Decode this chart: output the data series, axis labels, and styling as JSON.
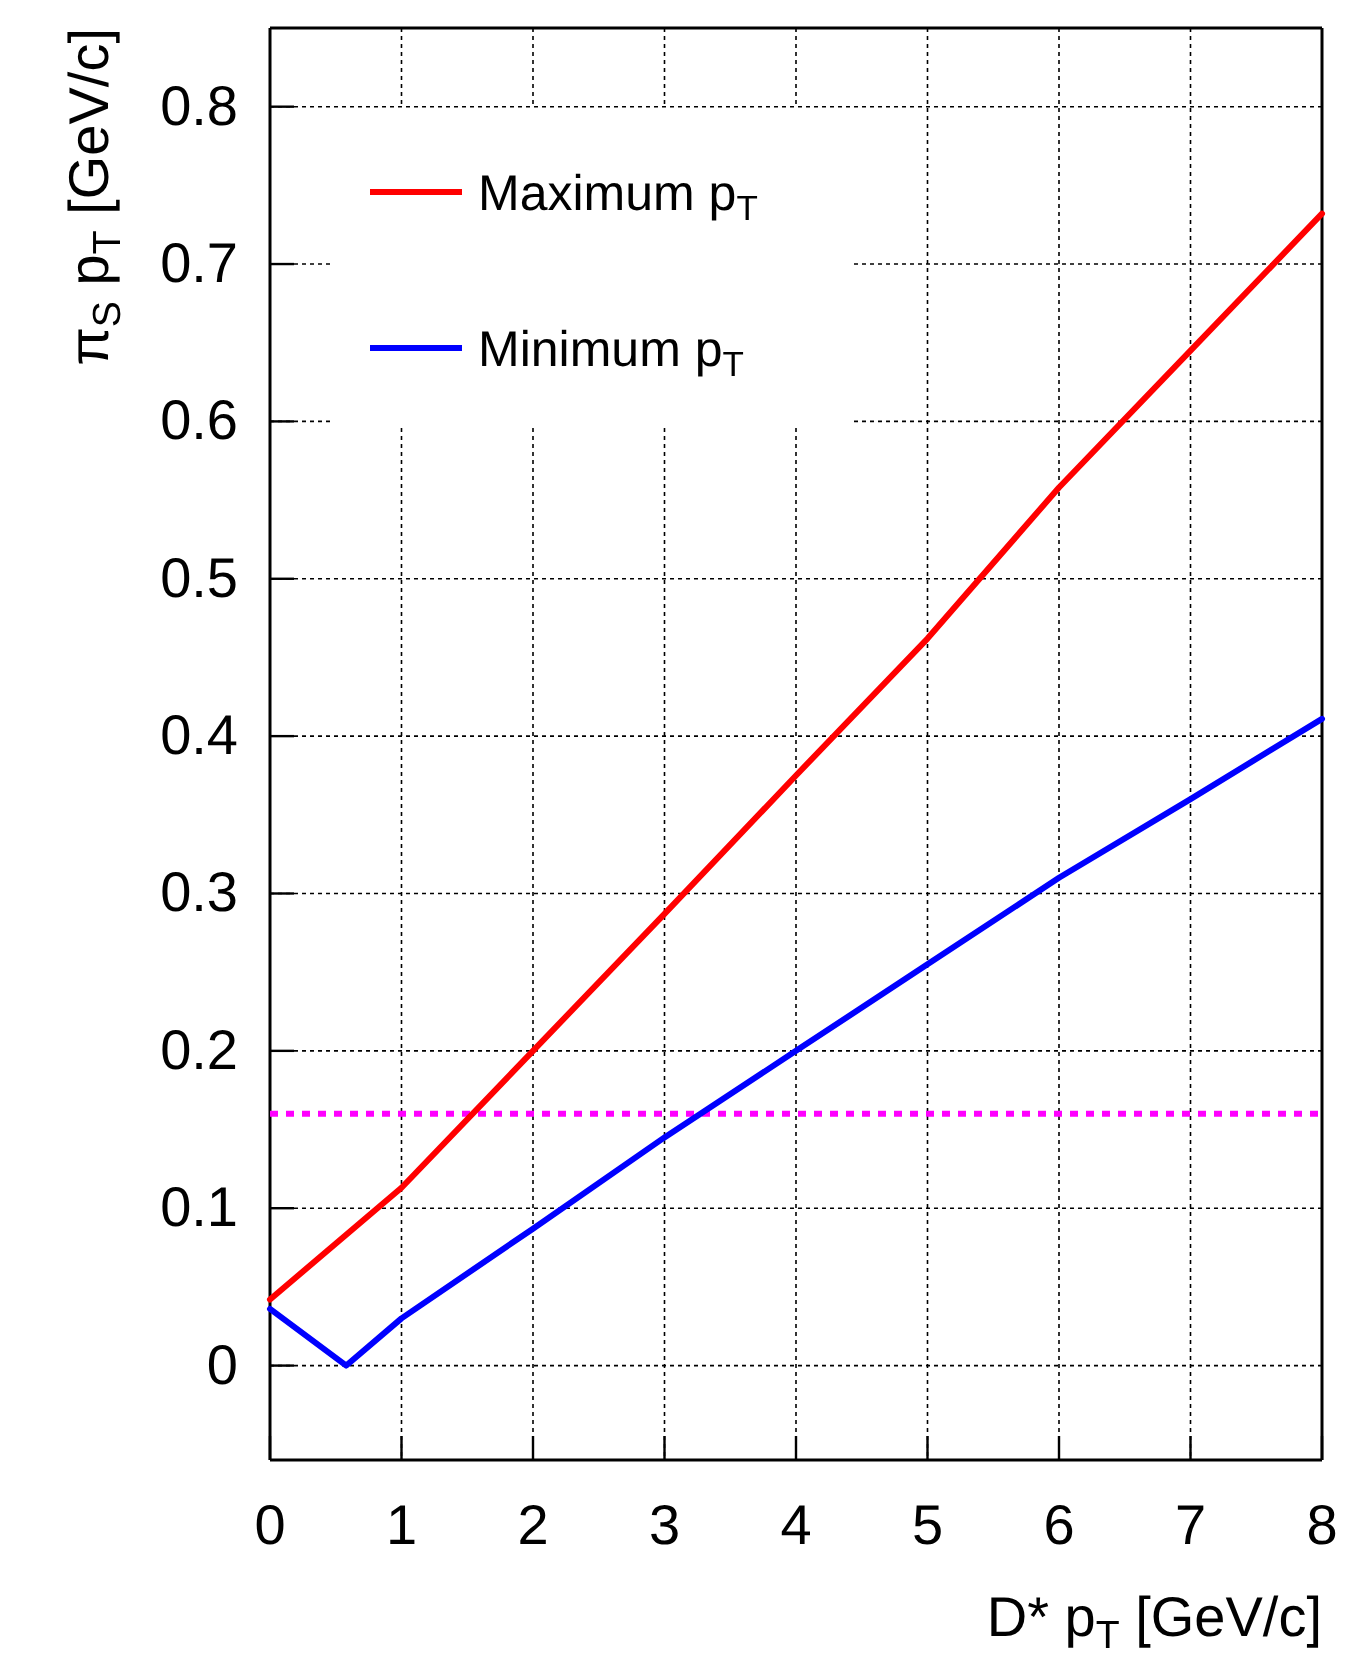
{
  "chart_data": {
    "type": "line",
    "xlabel": "D* p$_{T}$ [GeV/c]",
    "ylabel": "π$_{S}$ p$_{T}$ [GeV/c]",
    "xlim": [
      0,
      8
    ],
    "ylim": [
      -0.06,
      0.85
    ],
    "xticks": [
      0,
      1,
      2,
      3,
      4,
      5,
      6,
      7,
      8
    ],
    "yticks": [
      0,
      0.1,
      0.2,
      0.3,
      0.4,
      0.5,
      0.6,
      0.7,
      0.8
    ],
    "grid": true,
    "legend": "top left",
    "line_style": "solid",
    "marker": "none",
    "series": [
      {
        "name": "Maximum p$_{T}$",
        "color": "#ff0000",
        "x": [
          0,
          1,
          2,
          3,
          4,
          5,
          6,
          7,
          8
        ],
        "values": [
          0.042,
          0.113,
          0.2,
          0.287,
          0.375,
          0.462,
          0.558,
          0.645,
          0.732
        ]
      },
      {
        "name": "Minimum p$_{T}$",
        "color": "#0000ff",
        "x": [
          0,
          0.58,
          1,
          2,
          3,
          4,
          5,
          6,
          7,
          8
        ],
        "values": [
          0.036,
          0,
          0.03,
          0.087,
          0.145,
          0.2,
          0.255,
          0.31,
          0.36,
          0.411
        ]
      }
    ],
    "ref_lines": [
      {
        "axis": "y",
        "value": 0.16,
        "color": "#ff00ff",
        "line_style": "dotted"
      }
    ]
  }
}
